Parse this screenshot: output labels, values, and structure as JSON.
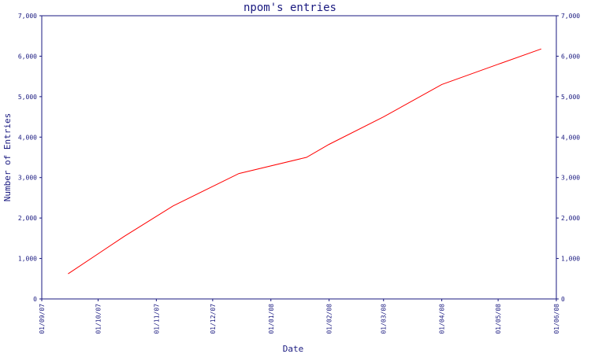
{
  "chart_data": {
    "type": "line",
    "title": "npom's entries",
    "xlabel": "Date",
    "ylabel": "Number of Entries",
    "x_tick_labels": [
      "01/09/07",
      "01/10/07",
      "01/11/07",
      "01/12/07",
      "01/01/08",
      "01/02/08",
      "01/03/08",
      "01/04/08",
      "01/05/08",
      "01/06/08"
    ],
    "x_ticks": [
      "2007-09-01",
      "2007-10-01",
      "2007-11-01",
      "2007-12-01",
      "2008-01-01",
      "2008-02-01",
      "2008-03-01",
      "2008-04-01",
      "2008-05-01",
      "2008-06-01"
    ],
    "xlim": [
      "2007-09-01",
      "2008-06-01"
    ],
    "ylim": [
      0,
      7000
    ],
    "y_ticks": [
      0,
      1000,
      2000,
      3000,
      4000,
      5000,
      6000,
      7000
    ],
    "y_tick_labels": [
      "0",
      "1,000",
      "2,000",
      "3,000",
      "4,000",
      "5,000",
      "6,000",
      "7,000"
    ],
    "y_axis_right": true,
    "grid": false,
    "series": [
      {
        "color": "#ff0000",
        "points": [
          {
            "x": "2007-09-15",
            "y": 620
          },
          {
            "x": "2007-10-15",
            "y": 1550
          },
          {
            "x": "2007-11-10",
            "y": 2300
          },
          {
            "x": "2007-12-15",
            "y": 3100
          },
          {
            "x": "2008-01-20",
            "y": 3500
          },
          {
            "x": "2008-02-01",
            "y": 3820
          },
          {
            "x": "2008-03-01",
            "y": 4500
          },
          {
            "x": "2008-04-01",
            "y": 5300
          },
          {
            "x": "2008-05-01",
            "y": 5800
          },
          {
            "x": "2008-05-24",
            "y": 6180
          }
        ]
      }
    ]
  }
}
